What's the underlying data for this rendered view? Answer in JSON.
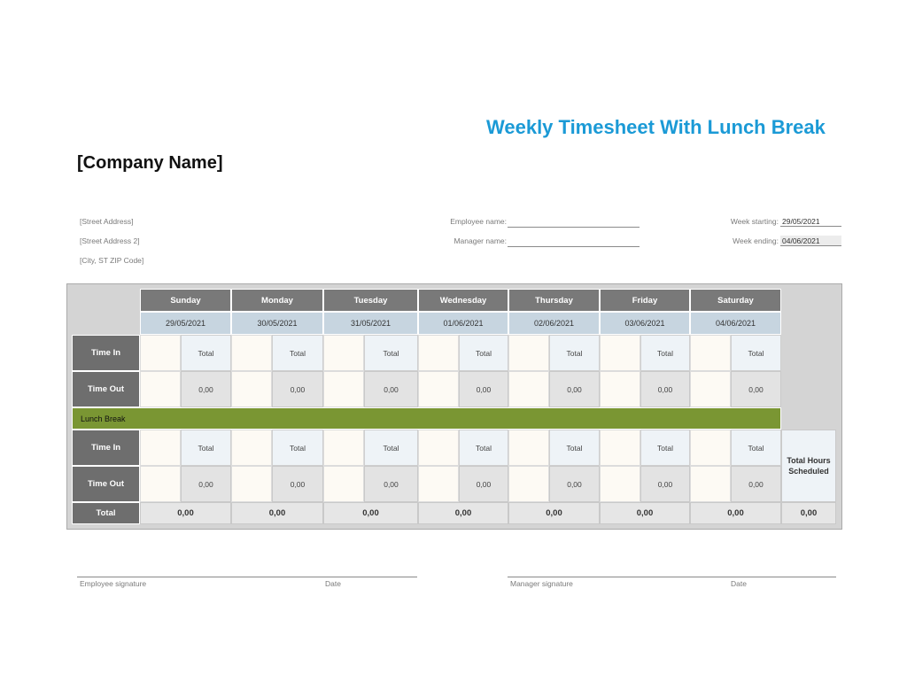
{
  "title": "Weekly Timesheet With Lunch Break",
  "company": "[Company Name]",
  "address": {
    "street": "[Street Address]",
    "street2": "[Street Address 2]",
    "city": "[City, ST  ZIP Code]"
  },
  "employee_label": "Employee name:",
  "manager_label": "Manager name:",
  "employee_name": "",
  "manager_name": "",
  "week_starting_label": "Week starting:",
  "week_starting": "29/05/2021",
  "week_ending_label": "Week ending:",
  "week_ending": "04/06/2021",
  "days": [
    {
      "name": "Sunday",
      "date": "29/05/2021"
    },
    {
      "name": "Monday",
      "date": "30/05/2021"
    },
    {
      "name": "Tuesday",
      "date": "31/05/2021"
    },
    {
      "name": "Wednesday",
      "date": "01/06/2021"
    },
    {
      "name": "Thursday",
      "date": "02/06/2021"
    },
    {
      "name": "Friday",
      "date": "03/06/2021"
    },
    {
      "name": "Saturday",
      "date": "04/06/2021"
    }
  ],
  "row_labels": {
    "time_in": "Time In",
    "time_out": "Time Out",
    "total": "Total"
  },
  "total_label": "Total",
  "zero_value": "0,00",
  "lunch_break": "Lunch Break",
  "daily_totals": [
    "0,00",
    "0,00",
    "0,00",
    "0,00",
    "0,00",
    "0,00",
    "0,00"
  ],
  "total_hours_label": "Total Hours Scheduled",
  "total_hours": "0,00",
  "signatures": {
    "employee": "Employee signature",
    "employee_date": "Date",
    "manager": "Manager signature",
    "manager_date": "Date"
  }
}
